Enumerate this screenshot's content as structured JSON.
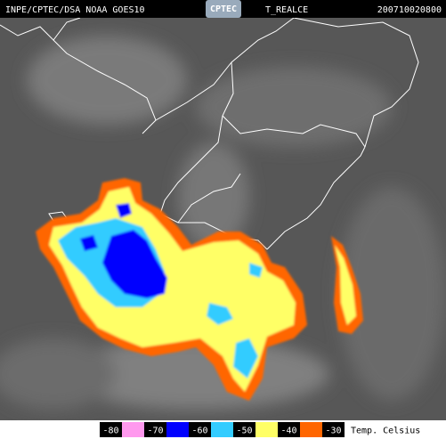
{
  "header": {
    "source": "INPE/CPTEC/DSA NOAA GOES10",
    "logo": "CPTEC",
    "product": "T_REALCE",
    "timestamp": "200710020800"
  },
  "legend": {
    "labels": [
      "-80",
      "-70",
      "-60",
      "-50",
      "-40",
      "-30"
    ],
    "colors": [
      "#ff99ee",
      "#0000ff",
      "#33ccff",
      "#ffff66",
      "#ff6600"
    ],
    "unit": "Temp. Celsius"
  }
}
